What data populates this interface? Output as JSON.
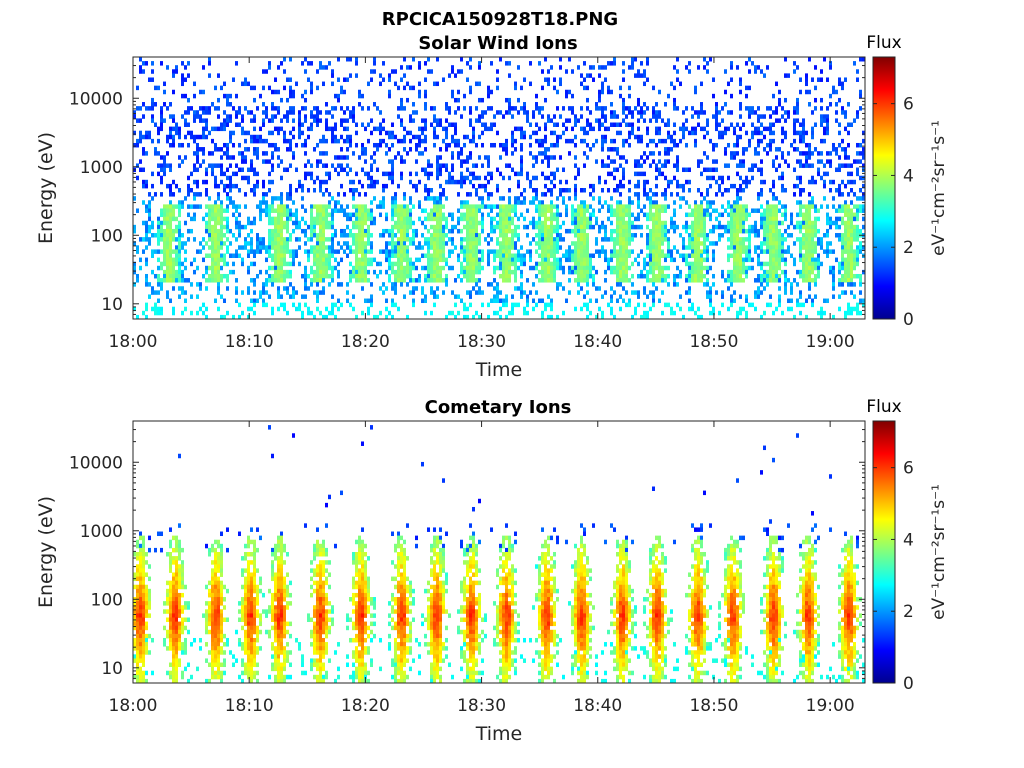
{
  "figure_title": "RPCICA150928T18.PNG",
  "chart_data": [
    {
      "type": "heatmap",
      "title": "Solar Wind Ions",
      "xlabel": "Time",
      "ylabel": "Energy (eV)",
      "y_scale": "log",
      "x_ticks": [
        "18:00",
        "18:10",
        "18:20",
        "18:30",
        "18:40",
        "18:50",
        "19:00"
      ],
      "y_ticks": [
        "10",
        "100",
        "1000",
        "10000"
      ],
      "xlim": [
        "18:00",
        "19:03"
      ],
      "ylim": [
        6,
        40000
      ],
      "colorbar": {
        "title": "Flux",
        "label": "eV⁻¹cm⁻²sr⁻¹s⁻¹",
        "ticks": [
          "0",
          "2",
          "4",
          "6"
        ],
        "range": [
          0,
          7.3
        ],
        "colormap": "jet"
      },
      "features": {
        "background_flux": [
          1.0,
          2.0
        ],
        "burst_times_min": [
          3,
          7,
          12.5,
          16,
          19.5,
          23,
          26,
          29,
          32,
          35.5,
          38.5,
          42,
          45,
          48.5,
          52,
          55,
          58,
          61.5
        ],
        "burst_energy_eV": [
          20,
          300
        ],
        "burst_peak_flux": 3.6
      }
    },
    {
      "type": "heatmap",
      "title": "Cometary Ions",
      "xlabel": "Time",
      "ylabel": "Energy (eV)",
      "y_scale": "log",
      "x_ticks": [
        "18:00",
        "18:10",
        "18:20",
        "18:30",
        "18:40",
        "18:50",
        "19:00"
      ],
      "y_ticks": [
        "10",
        "100",
        "1000",
        "10000"
      ],
      "xlim": [
        "18:00",
        "19:03"
      ],
      "ylim": [
        6,
        40000
      ],
      "colorbar": {
        "title": "Flux",
        "label": "eV⁻¹cm⁻²sr⁻¹s⁻¹",
        "ticks": [
          "0",
          "2",
          "4",
          "6"
        ],
        "range": [
          0,
          7.3
        ],
        "colormap": "jet"
      },
      "features": {
        "burst_times_min": [
          0.5,
          3.5,
          7,
          10,
          12.5,
          16,
          19.5,
          23,
          26,
          29,
          32,
          35.5,
          38.5,
          42,
          45,
          48.5,
          51.5,
          55,
          58,
          61.5
        ],
        "burst_energy_eV": [
          8,
          600
        ],
        "burst_peak_flux": 5.8,
        "sparse_high_energy_eV": [
          1000,
          30000
        ]
      }
    }
  ]
}
